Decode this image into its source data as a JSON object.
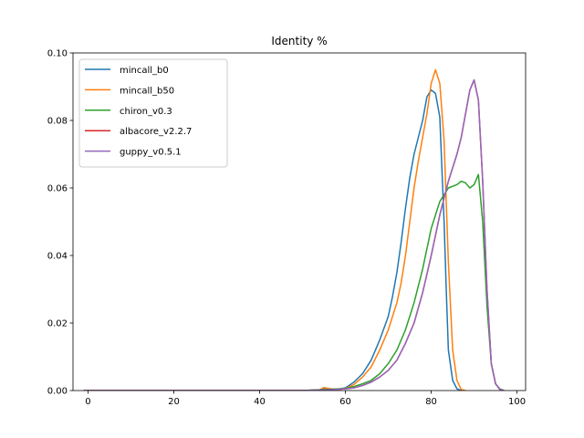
{
  "chart_data": {
    "type": "line",
    "title": "Identity %",
    "xlabel": "",
    "ylabel": "",
    "xlim": [
      -3.5,
      102
    ],
    "ylim": [
      0,
      0.1
    ],
    "x_ticks": [
      0,
      20,
      40,
      60,
      80,
      100
    ],
    "x_tick_labels": [
      "0",
      "20",
      "40",
      "60",
      "80",
      "100"
    ],
    "y_ticks": [
      0.0,
      0.02,
      0.04,
      0.06,
      0.08,
      0.1
    ],
    "y_tick_labels": [
      "0.00",
      "0.02",
      "0.04",
      "0.06",
      "0.08",
      "0.10"
    ],
    "grid": false,
    "legend_position": "upper-left",
    "series": [
      {
        "name": "mincall_b0",
        "color": "#1f77b4",
        "points": [
          [
            -1,
            0
          ],
          [
            10,
            0
          ],
          [
            30,
            0
          ],
          [
            50,
            0
          ],
          [
            54,
            0.0002
          ],
          [
            55,
            0.0007
          ],
          [
            56,
            0.0005
          ],
          [
            58,
            0.0003
          ],
          [
            60,
            0.0008
          ],
          [
            62,
            0.0025
          ],
          [
            64,
            0.005
          ],
          [
            66,
            0.009
          ],
          [
            68,
            0.015
          ],
          [
            70,
            0.022
          ],
          [
            71,
            0.028
          ],
          [
            72,
            0.035
          ],
          [
            73,
            0.044
          ],
          [
            74,
            0.054
          ],
          [
            75,
            0.063
          ],
          [
            76,
            0.07
          ],
          [
            77,
            0.075
          ],
          [
            78,
            0.08
          ],
          [
            79,
            0.087
          ],
          [
            80,
            0.089
          ],
          [
            81,
            0.088
          ],
          [
            82,
            0.081
          ],
          [
            83,
            0.05
          ],
          [
            83.5,
            0.03
          ],
          [
            84,
            0.012
          ],
          [
            85,
            0.003
          ],
          [
            86,
            0.0005
          ],
          [
            87,
            0
          ]
        ]
      },
      {
        "name": "mincall_b50",
        "color": "#ff7f0e",
        "points": [
          [
            -1,
            0
          ],
          [
            10,
            0
          ],
          [
            30,
            0
          ],
          [
            50,
            0
          ],
          [
            54,
            0.0002
          ],
          [
            55,
            0.0009
          ],
          [
            56,
            0.0006
          ],
          [
            58,
            0.0003
          ],
          [
            60,
            0.0006
          ],
          [
            62,
            0.0018
          ],
          [
            64,
            0.004
          ],
          [
            66,
            0.007
          ],
          [
            68,
            0.012
          ],
          [
            70,
            0.018
          ],
          [
            72,
            0.026
          ],
          [
            73,
            0.032
          ],
          [
            74,
            0.04
          ],
          [
            75,
            0.05
          ],
          [
            76,
            0.06
          ],
          [
            77,
            0.068
          ],
          [
            78,
            0.075
          ],
          [
            79,
            0.082
          ],
          [
            80,
            0.091
          ],
          [
            81,
            0.095
          ],
          [
            82,
            0.091
          ],
          [
            83,
            0.074
          ],
          [
            84,
            0.038
          ],
          [
            85,
            0.012
          ],
          [
            86,
            0.003
          ],
          [
            87,
            0.0003
          ],
          [
            88,
            0
          ]
        ]
      },
      {
        "name": "chiron_v0.3",
        "color": "#2ca02c",
        "points": [
          [
            -1,
            0
          ],
          [
            10,
            0
          ],
          [
            30,
            0
          ],
          [
            50,
            0
          ],
          [
            55,
            0.0003
          ],
          [
            60,
            0.0006
          ],
          [
            62,
            0.0012
          ],
          [
            64,
            0.002
          ],
          [
            66,
            0.003
          ],
          [
            68,
            0.005
          ],
          [
            70,
            0.008
          ],
          [
            72,
            0.012
          ],
          [
            74,
            0.018
          ],
          [
            76,
            0.026
          ],
          [
            78,
            0.036
          ],
          [
            80,
            0.048
          ],
          [
            82,
            0.056
          ],
          [
            84,
            0.06
          ],
          [
            86,
            0.061
          ],
          [
            87,
            0.062
          ],
          [
            88,
            0.0615
          ],
          [
            89,
            0.06
          ],
          [
            90,
            0.061
          ],
          [
            91,
            0.064
          ],
          [
            92,
            0.05
          ],
          [
            93,
            0.025
          ],
          [
            94,
            0.008
          ],
          [
            95,
            0.002
          ],
          [
            96,
            0.0005
          ],
          [
            97,
            0
          ]
        ]
      },
      {
        "name": "albacore_v2.2.7",
        "color": "#d62728",
        "points": [
          [
            -1,
            0
          ],
          [
            10,
            0
          ],
          [
            30,
            0
          ],
          [
            50,
            0
          ],
          [
            56,
            0.0002
          ],
          [
            60,
            0.0005
          ],
          [
            62,
            0.0008
          ],
          [
            64,
            0.0015
          ],
          [
            66,
            0.0025
          ],
          [
            68,
            0.004
          ],
          [
            70,
            0.006
          ],
          [
            72,
            0.009
          ],
          [
            74,
            0.014
          ],
          [
            76,
            0.02
          ],
          [
            78,
            0.029
          ],
          [
            80,
            0.04
          ],
          [
            82,
            0.052
          ],
          [
            84,
            0.062
          ],
          [
            85,
            0.066
          ],
          [
            86,
            0.07
          ],
          [
            87,
            0.075
          ],
          [
            88,
            0.082
          ],
          [
            89,
            0.089
          ],
          [
            90,
            0.092
          ],
          [
            91,
            0.086
          ],
          [
            92,
            0.062
          ],
          [
            93,
            0.03
          ],
          [
            94,
            0.008
          ],
          [
            95,
            0.002
          ],
          [
            96,
            0.0003
          ],
          [
            97,
            0
          ]
        ]
      },
      {
        "name": "guppy_v0.5.1",
        "color": "#9467bd",
        "points": [
          [
            -1,
            0
          ],
          [
            10,
            0
          ],
          [
            30,
            0
          ],
          [
            50,
            0
          ],
          [
            56,
            0.0002
          ],
          [
            60,
            0.0005
          ],
          [
            62,
            0.0008
          ],
          [
            64,
            0.0015
          ],
          [
            66,
            0.0025
          ],
          [
            68,
            0.004
          ],
          [
            70,
            0.006
          ],
          [
            72,
            0.009
          ],
          [
            74,
            0.014
          ],
          [
            76,
            0.02
          ],
          [
            78,
            0.029
          ],
          [
            80,
            0.04
          ],
          [
            82,
            0.052
          ],
          [
            84,
            0.062
          ],
          [
            85,
            0.066
          ],
          [
            86,
            0.07
          ],
          [
            87,
            0.075
          ],
          [
            88,
            0.082
          ],
          [
            89,
            0.089
          ],
          [
            90,
            0.092
          ],
          [
            91,
            0.086
          ],
          [
            92,
            0.062
          ],
          [
            93,
            0.03
          ],
          [
            94,
            0.008
          ],
          [
            95,
            0.002
          ],
          [
            96,
            0.0003
          ],
          [
            97,
            0
          ]
        ]
      }
    ]
  }
}
